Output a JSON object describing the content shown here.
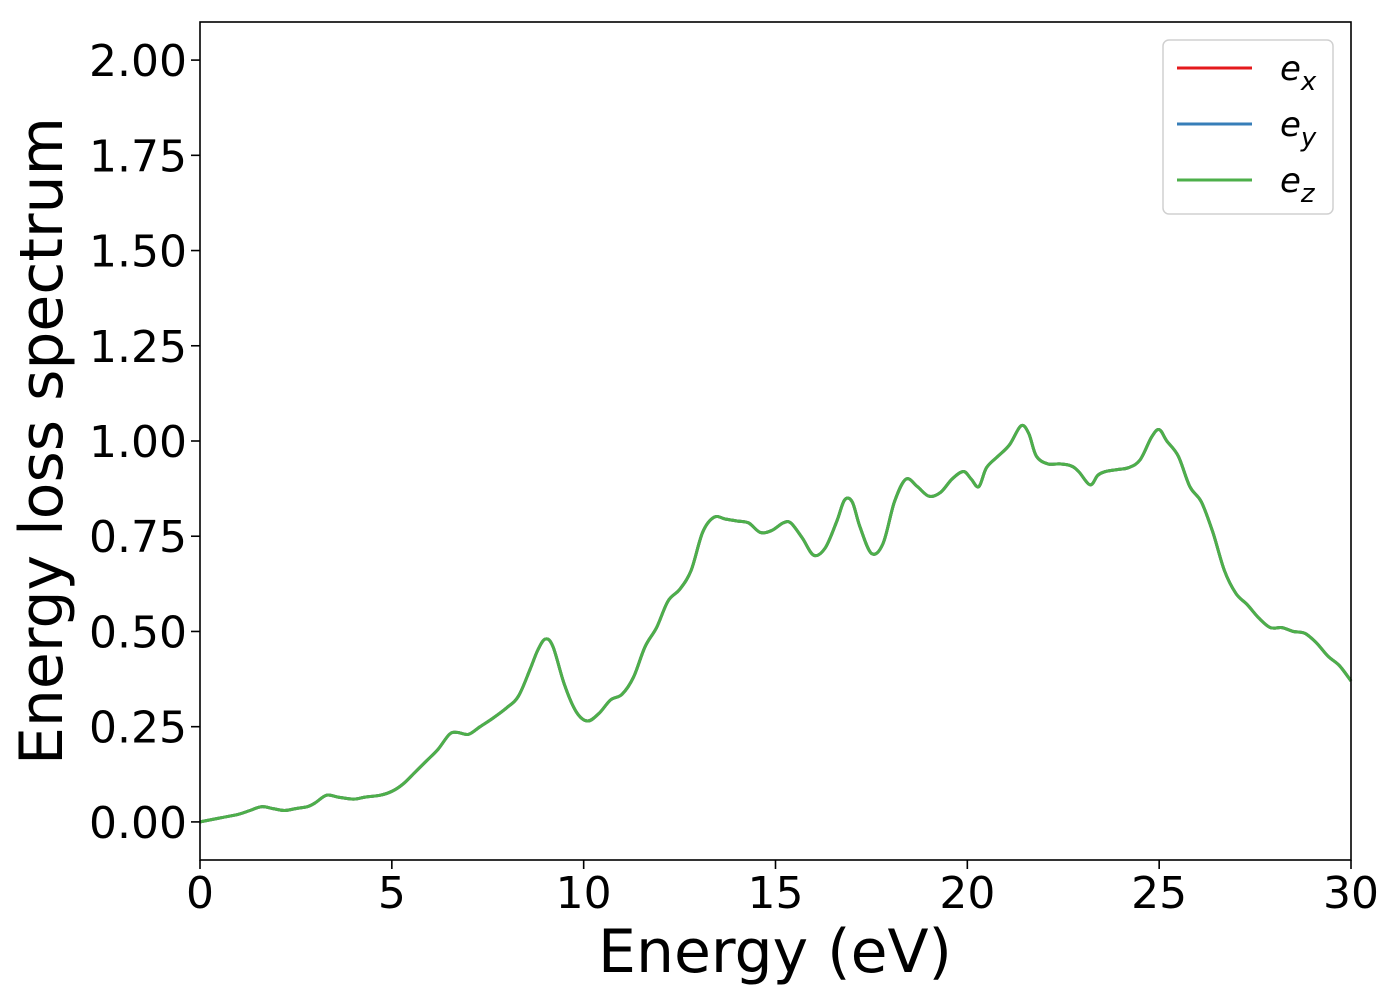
{
  "chart_data": {
    "type": "line",
    "xlabel": "Energy (eV)",
    "ylabel": "Energy loss spectrum",
    "xlim": [
      0,
      30
    ],
    "ylim": [
      -0.1,
      2.1
    ],
    "xticks": [
      "0",
      "5",
      "10",
      "15",
      "20",
      "25",
      "30"
    ],
    "yticks": [
      "0.00",
      "0.25",
      "0.50",
      "0.75",
      "1.00",
      "1.25",
      "1.50",
      "1.75",
      "2.00"
    ],
    "grid": false,
    "legend_position": "top-right",
    "series": [
      {
        "name": "e",
        "subscript": "x",
        "color": "#e41a1c"
      },
      {
        "name": "e",
        "subscript": "y",
        "color": "#377eb8"
      },
      {
        "name": "e",
        "subscript": "z",
        "color": "#4daf4a"
      }
    ],
    "x": [
      0,
      0.5,
      1.0,
      1.3,
      1.6,
      1.9,
      2.2,
      2.5,
      2.8,
      3.0,
      3.3,
      3.6,
      4.0,
      4.3,
      4.7,
      5.0,
      5.3,
      5.6,
      5.9,
      6.2,
      6.5,
      6.7,
      7.0,
      7.3,
      7.6,
      8.0,
      8.3,
      8.6,
      8.8,
      9.0,
      9.2,
      9.5,
      9.8,
      10.1,
      10.4,
      10.7,
      11.0,
      11.3,
      11.6,
      11.9,
      12.2,
      12.5,
      12.8,
      13.1,
      13.4,
      13.7,
      14.0,
      14.3,
      14.6,
      14.9,
      15.2,
      15.4,
      15.7,
      16.0,
      16.3,
      16.6,
      16.8,
      17.0,
      17.2,
      17.5,
      17.8,
      18.1,
      18.4,
      18.7,
      19.0,
      19.3,
      19.6,
      19.9,
      20.1,
      20.3,
      20.5,
      20.8,
      21.1,
      21.4,
      21.6,
      21.8,
      22.1,
      22.4,
      22.7,
      22.9,
      23.2,
      23.4,
      23.6,
      23.9,
      24.2,
      24.5,
      24.8,
      25.0,
      25.2,
      25.5,
      25.8,
      26.1,
      26.4,
      26.7,
      27.0,
      27.3,
      27.6,
      27.9,
      28.2,
      28.5,
      28.8,
      29.1,
      29.4,
      29.7,
      30.0
    ],
    "values": [
      0.0,
      0.01,
      0.02,
      0.03,
      0.04,
      0.035,
      0.03,
      0.035,
      0.04,
      0.05,
      0.07,
      0.065,
      0.06,
      0.065,
      0.07,
      0.08,
      0.1,
      0.13,
      0.16,
      0.19,
      0.23,
      0.235,
      0.23,
      0.25,
      0.27,
      0.3,
      0.33,
      0.4,
      0.45,
      0.48,
      0.46,
      0.36,
      0.29,
      0.265,
      0.285,
      0.32,
      0.335,
      0.38,
      0.46,
      0.51,
      0.58,
      0.61,
      0.66,
      0.76,
      0.8,
      0.795,
      0.79,
      0.785,
      0.76,
      0.765,
      0.785,
      0.785,
      0.745,
      0.7,
      0.72,
      0.79,
      0.845,
      0.84,
      0.775,
      0.705,
      0.73,
      0.84,
      0.9,
      0.88,
      0.855,
      0.865,
      0.9,
      0.92,
      0.9,
      0.88,
      0.93,
      0.96,
      0.99,
      1.04,
      1.02,
      0.96,
      0.94,
      0.94,
      0.935,
      0.92,
      0.885,
      0.91,
      0.92,
      0.925,
      0.93,
      0.95,
      1.01,
      1.03,
      1.0,
      0.96,
      0.88,
      0.84,
      0.76,
      0.66,
      0.6,
      0.57,
      0.535,
      0.51,
      0.51,
      0.5,
      0.495,
      0.47,
      0.435,
      0.41,
      0.37
    ]
  }
}
